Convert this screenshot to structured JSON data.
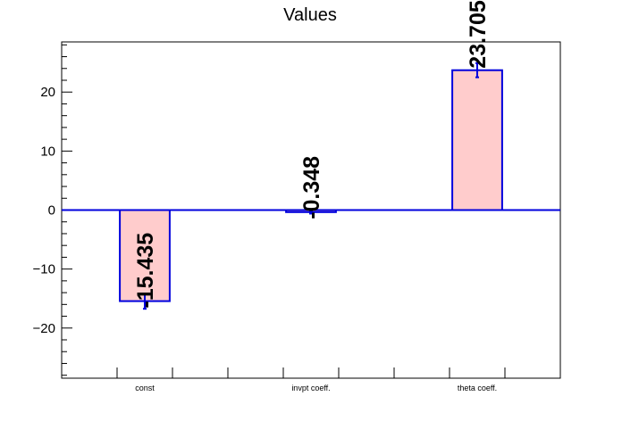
{
  "chart_data": {
    "type": "bar",
    "title": "Values",
    "xlabel": "",
    "ylabel": "",
    "categories": [
      "const",
      "invpt coeff.",
      "theta coeff."
    ],
    "values": [
      -15.435,
      -0.348,
      23.705
    ],
    "errors": [
      1.3,
      0.25,
      1.2
    ],
    "value_labels": [
      "-15.435",
      "-0.348",
      "23.705"
    ],
    "ylim": [
      -28.5,
      28.5
    ],
    "yticks": [
      -20,
      -10,
      0,
      10,
      20
    ],
    "ytick_labels": [
      "−20",
      "−10",
      "0",
      "10",
      "20"
    ],
    "grid": false,
    "colors": {
      "bar_fill": "#ffcccc",
      "bar_edge": "#0000dd",
      "axis": "#000000",
      "zero_line": "#0000dd"
    }
  }
}
